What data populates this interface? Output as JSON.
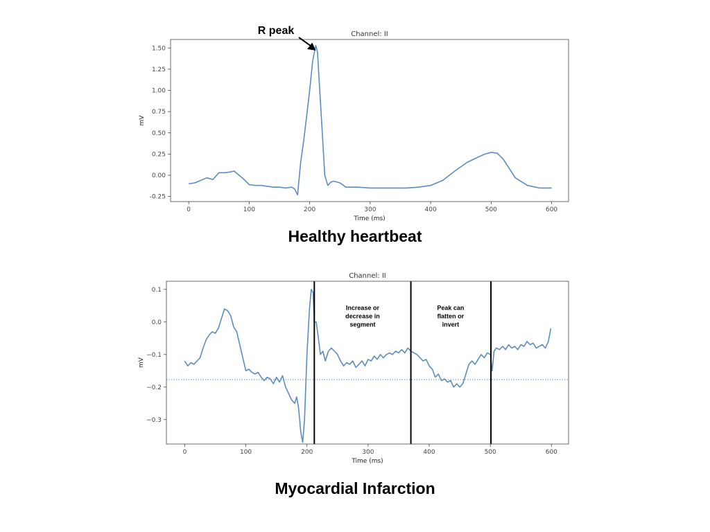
{
  "captions": {
    "healthy": "Healthy heartbeat",
    "infarction": "Myocardial Infarction"
  },
  "colors": {
    "line": "#5b8cc0",
    "frame": "#444444",
    "annotation": "#000000",
    "tick_text": "#444444"
  },
  "chart_data": [
    {
      "type": "line",
      "title": "Channel: II",
      "xlabel": "Time (ms)",
      "ylabel": "mV",
      "xlim": [
        -30,
        628
      ],
      "ylim": [
        -0.31,
        1.6
      ],
      "xticks": [
        0,
        100,
        200,
        300,
        400,
        500,
        600
      ],
      "yticks": [
        -0.25,
        0.0,
        0.25,
        0.5,
        0.75,
        1.0,
        1.25,
        1.5
      ],
      "ytick_labels": [
        "-0.25",
        "0.00",
        "0.25",
        "0.50",
        "0.75",
        "1.00",
        "1.25",
        "1.50"
      ],
      "grid": false,
      "annotation": {
        "text": "R peak",
        "arrow_to": [
          210,
          1.47
        ]
      },
      "series": [
        {
          "x": [
            0,
            10,
            20,
            30,
            40,
            50,
            60,
            70,
            75,
            80,
            90,
            100,
            110,
            120,
            130,
            140,
            150,
            160,
            170,
            175,
            180,
            185,
            190,
            195,
            200,
            205,
            210,
            213,
            215,
            220,
            225,
            230,
            235,
            240,
            250,
            260,
            270,
            280,
            300,
            320,
            340,
            360,
            380,
            400,
            420,
            440,
            460,
            480,
            490,
            500,
            510,
            520,
            530,
            540,
            560,
            580,
            600
          ],
          "y": [
            -0.1,
            -0.09,
            -0.06,
            -0.03,
            -0.05,
            0.03,
            0.03,
            0.04,
            0.05,
            0.02,
            -0.04,
            -0.11,
            -0.12,
            -0.12,
            -0.13,
            -0.14,
            -0.14,
            -0.15,
            -0.14,
            -0.16,
            -0.23,
            0.15,
            0.4,
            0.7,
            1.0,
            1.35,
            1.53,
            1.45,
            1.2,
            0.6,
            0.0,
            -0.12,
            -0.08,
            -0.07,
            -0.09,
            -0.14,
            -0.14,
            -0.14,
            -0.15,
            -0.15,
            -0.15,
            -0.15,
            -0.14,
            -0.12,
            -0.06,
            0.05,
            0.15,
            0.22,
            0.25,
            0.27,
            0.26,
            0.19,
            0.08,
            -0.03,
            -0.12,
            -0.15,
            -0.15
          ]
        }
      ]
    },
    {
      "type": "line",
      "title": "Channel: II",
      "xlabel": "Time (ms)",
      "ylabel": "mV",
      "xlim": [
        -30,
        628
      ],
      "ylim": [
        -0.375,
        0.125
      ],
      "xticks": [
        0,
        100,
        200,
        300,
        400,
        500,
        600
      ],
      "yticks": [
        -0.3,
        -0.2,
        -0.1,
        0.0,
        0.1
      ],
      "ytick_labels": [
        "−0.3",
        "−0.2",
        "−0.1",
        "0.0",
        "0.1"
      ],
      "grid": false,
      "reference_line": -0.177,
      "vlines": [
        212,
        370,
        501
      ],
      "annotations": [
        {
          "lines": [
            "Increase or",
            "decrease in",
            "segment"
          ],
          "x": 291,
          "y": 0.02
        },
        {
          "lines": [
            "Peak can",
            "flatten or",
            "invert"
          ],
          "x": 435,
          "y": 0.02
        }
      ],
      "series": [
        {
          "x": [
            0,
            5,
            10,
            15,
            20,
            25,
            30,
            35,
            40,
            45,
            50,
            55,
            60,
            65,
            70,
            75,
            80,
            85,
            90,
            95,
            100,
            105,
            110,
            115,
            120,
            125,
            130,
            135,
            140,
            145,
            150,
            155,
            160,
            165,
            170,
            175,
            180,
            183,
            186,
            190,
            193,
            196,
            200,
            204,
            207,
            210,
            212,
            215,
            218,
            222,
            226,
            230,
            235,
            240,
            245,
            250,
            255,
            260,
            265,
            270,
            275,
            280,
            285,
            290,
            295,
            300,
            305,
            310,
            315,
            320,
            325,
            330,
            335,
            340,
            345,
            350,
            355,
            360,
            365,
            370,
            375,
            380,
            385,
            390,
            395,
            400,
            405,
            410,
            415,
            420,
            425,
            430,
            435,
            440,
            445,
            450,
            455,
            460,
            465,
            470,
            475,
            480,
            485,
            490,
            495,
            500,
            503,
            506,
            510,
            515,
            520,
            525,
            530,
            535,
            540,
            545,
            550,
            555,
            560,
            565,
            570,
            575,
            580,
            585,
            590,
            595,
            599
          ],
          "y": [
            -0.12,
            -0.135,
            -0.125,
            -0.13,
            -0.12,
            -0.11,
            -0.08,
            -0.055,
            -0.04,
            -0.03,
            -0.035,
            -0.02,
            0.01,
            0.04,
            0.035,
            0.02,
            -0.015,
            -0.03,
            -0.07,
            -0.11,
            -0.15,
            -0.145,
            -0.155,
            -0.16,
            -0.155,
            -0.17,
            -0.18,
            -0.17,
            -0.175,
            -0.19,
            -0.17,
            -0.185,
            -0.165,
            -0.2,
            -0.22,
            -0.24,
            -0.25,
            -0.23,
            -0.26,
            -0.34,
            -0.37,
            -0.3,
            -0.1,
            0.04,
            0.1,
            0.09,
            0.0,
            0.0,
            -0.04,
            -0.1,
            -0.09,
            -0.12,
            -0.09,
            -0.08,
            -0.09,
            -0.1,
            -0.12,
            -0.135,
            -0.125,
            -0.13,
            -0.12,
            -0.14,
            -0.13,
            -0.12,
            -0.135,
            -0.115,
            -0.12,
            -0.105,
            -0.115,
            -0.1,
            -0.11,
            -0.1,
            -0.095,
            -0.1,
            -0.09,
            -0.095,
            -0.085,
            -0.095,
            -0.08,
            -0.09,
            -0.095,
            -0.1,
            -0.11,
            -0.12,
            -0.115,
            -0.135,
            -0.145,
            -0.17,
            -0.16,
            -0.18,
            -0.175,
            -0.185,
            -0.18,
            -0.2,
            -0.19,
            -0.2,
            -0.19,
            -0.16,
            -0.13,
            -0.12,
            -0.13,
            -0.115,
            -0.1,
            -0.11,
            -0.095,
            -0.1,
            -0.15,
            -0.09,
            -0.08,
            -0.085,
            -0.075,
            -0.085,
            -0.07,
            -0.08,
            -0.075,
            -0.085,
            -0.07,
            -0.075,
            -0.06,
            -0.07,
            -0.065,
            -0.08,
            -0.075,
            -0.07,
            -0.08,
            -0.06,
            -0.02
          ]
        }
      ]
    }
  ]
}
